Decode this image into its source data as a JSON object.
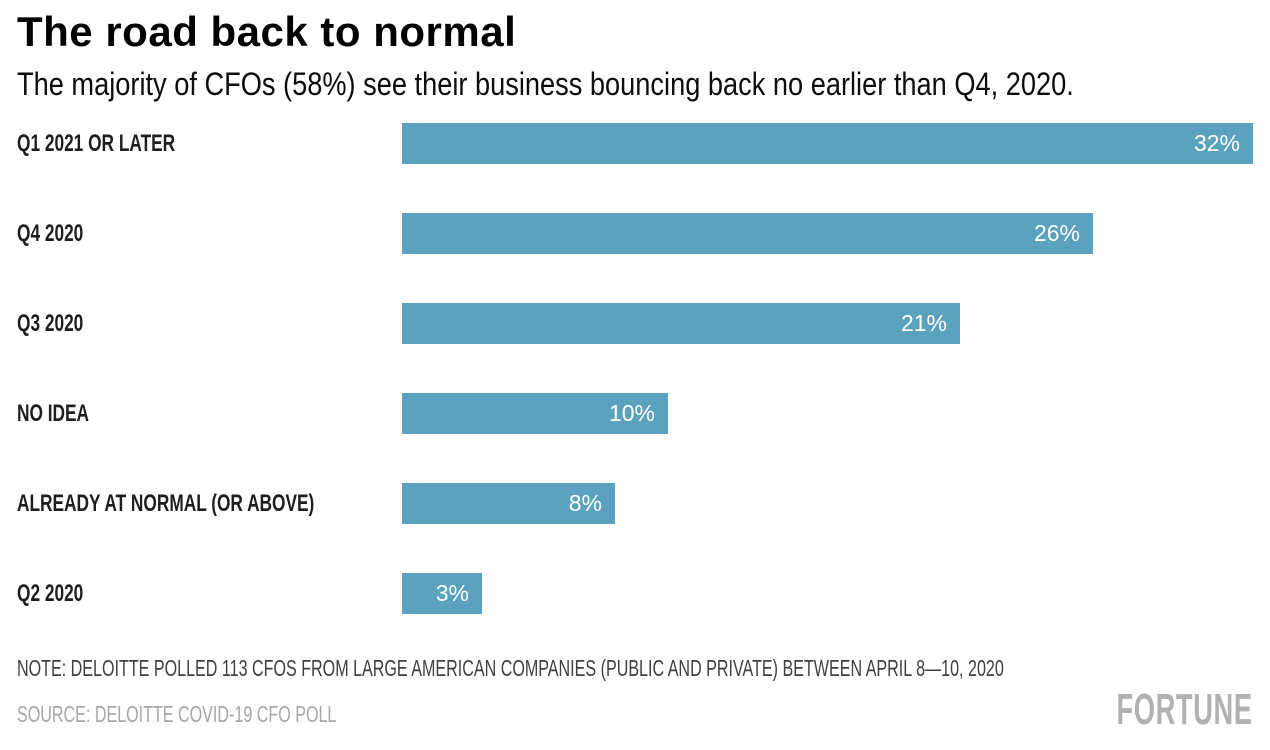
{
  "page": {
    "background": "#ffffff"
  },
  "header": {
    "title": "The road back to normal",
    "subtitle": "The majority of CFOs (58%) see their business bouncing back no earlier than Q4, 2020."
  },
  "chart_data": {
    "type": "bar",
    "orientation": "horizontal",
    "title": "The road back to normal",
    "subtitle": "The majority of CFOs (58%) see their business bouncing back no earlier than Q4, 2020.",
    "categories": [
      "Q1 2021 OR LATER",
      "Q4 2020",
      "Q3 2020",
      "NO IDEA",
      "ALREADY AT NORMAL (OR ABOVE)",
      "Q2 2020"
    ],
    "values": [
      32,
      26,
      21,
      10,
      8,
      3
    ],
    "value_suffix": "%",
    "xlabel": "",
    "ylabel": "",
    "xlim": [
      0,
      32
    ],
    "grid": false,
    "legend": false,
    "bar_color": "#5aa2bd",
    "value_label_color": "#ffffff",
    "value_label_position": "inside-end"
  },
  "footer": {
    "note": "NOTE: DELOITTE POLLED 113 CFOS FROM LARGE AMERICAN COMPANIES (PUBLIC AND PRIVATE) BETWEEN APRIL 8—10, 2020",
    "source": "SOURCE: DELOITTE COVID-19 CFO POLL",
    "brand": "FORTUNE"
  }
}
